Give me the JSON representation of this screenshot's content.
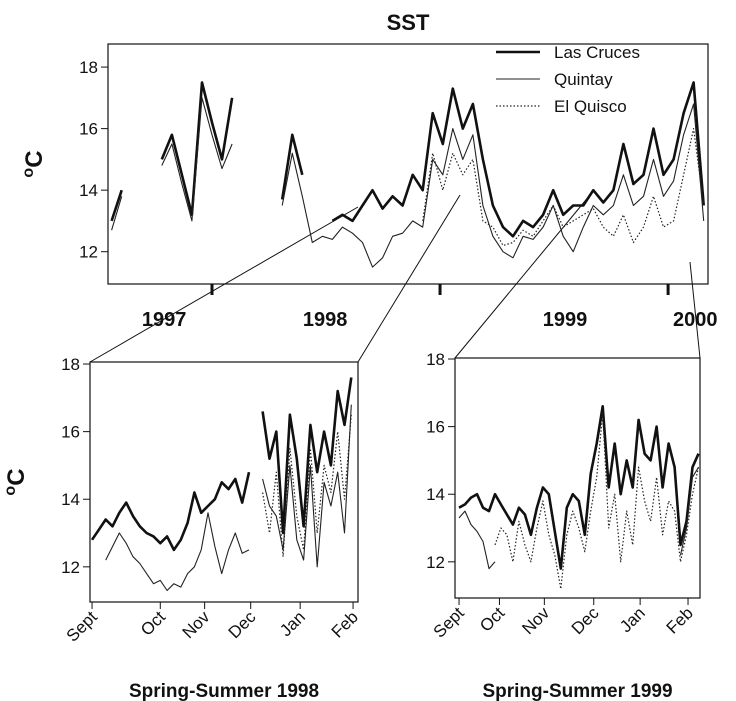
{
  "chart_data": [
    {
      "type": "line",
      "title": "SST",
      "ylabel": [
        "o",
        "C"
      ],
      "xlim": [
        1996.544,
        1999.175
      ],
      "xticks": [
        1997,
        1998,
        1999
      ],
      "year_labels": [
        {
          "value": 1996.79,
          "label": "1997"
        },
        {
          "value": 1997.496,
          "label": "1998"
        },
        {
          "value": 1998.548,
          "label": "1999"
        },
        {
          "value": 1999.119,
          "label": "2000"
        }
      ],
      "ylim": [
        10.95,
        18.75
      ],
      "yticks": [
        12,
        14,
        16,
        18
      ],
      "legend": "top-right",
      "x": [
        1996.56,
        1996.604,
        1996.648,
        1996.692,
        1996.736,
        1996.78,
        1996.824,
        1996.868,
        1996.912,
        1996.956,
        1997.0,
        1997.044,
        1997.088,
        1997.132,
        1997.176,
        1997.22,
        1997.264,
        1997.308,
        1997.352,
        1997.396,
        1997.44,
        1997.484,
        1997.528,
        1997.572,
        1997.616,
        1997.66,
        1997.704,
        1997.748,
        1997.792,
        1997.836,
        1997.88,
        1997.924,
        1997.968,
        1998.012,
        1998.056,
        1998.1,
        1998.144,
        1998.188,
        1998.232,
        1998.276,
        1998.32,
        1998.364,
        1998.408,
        1998.452,
        1998.496,
        1998.54,
        1998.584,
        1998.628,
        1998.672,
        1998.716,
        1998.76,
        1998.804,
        1998.848,
        1998.892,
        1998.936,
        1998.98,
        1999.024,
        1999.068,
        1999.112,
        1999.156
      ],
      "series": [
        {
          "name": "Las Cruces",
          "color": "#111111",
          "style": "thick",
          "values": [
            13.0,
            14.0,
            null,
            null,
            null,
            15.0,
            15.8,
            14.5,
            13.2,
            17.5,
            16.2,
            15.0,
            17.0,
            null,
            null,
            null,
            null,
            13.7,
            15.8,
            14.5,
            null,
            null,
            13.0,
            13.2,
            13.0,
            13.5,
            14.0,
            13.4,
            13.8,
            13.5,
            14.5,
            14.0,
            16.5,
            15.5,
            17.3,
            16.0,
            16.8,
            15.0,
            13.5,
            12.8,
            12.5,
            13.0,
            12.8,
            13.2,
            14.0,
            13.2,
            13.5,
            13.5,
            14.0,
            13.6,
            14.0,
            15.5,
            14.2,
            14.5,
            16.0,
            14.5,
            15.0,
            16.5,
            17.5,
            13.5
          ]
        },
        {
          "name": "Quintay",
          "color": "#222222",
          "style": "thin",
          "values": [
            12.7,
            13.8,
            null,
            null,
            null,
            14.8,
            15.5,
            14.2,
            13.0,
            17.0,
            15.8,
            14.7,
            15.5,
            null,
            null,
            null,
            null,
            13.5,
            15.2,
            13.8,
            12.3,
            12.5,
            12.4,
            12.8,
            12.6,
            12.3,
            11.5,
            11.8,
            12.5,
            12.6,
            13.0,
            12.8,
            15.0,
            14.5,
            16.0,
            15.0,
            15.8,
            13.5,
            12.5,
            12.0,
            11.8,
            12.5,
            12.4,
            12.8,
            13.5,
            12.5,
            12.0,
            12.8,
            13.5,
            13.2,
            13.5,
            14.5,
            13.5,
            13.8,
            15.0,
            13.8,
            14.3,
            15.8,
            16.8,
            13.0
          ]
        },
        {
          "name": "El Quisco",
          "color": "#222222",
          "style": "dotted",
          "values": [
            null,
            null,
            null,
            null,
            null,
            null,
            null,
            null,
            null,
            null,
            null,
            null,
            null,
            null,
            null,
            null,
            null,
            null,
            null,
            null,
            null,
            null,
            null,
            null,
            null,
            null,
            null,
            null,
            null,
            null,
            null,
            13.0,
            15.2,
            14.0,
            15.2,
            14.5,
            15.0,
            13.0,
            12.8,
            12.2,
            12.3,
            12.7,
            12.5,
            13.0,
            13.5,
            12.8,
            13.0,
            13.2,
            13.4,
            12.8,
            12.5,
            13.2,
            12.3,
            12.8,
            13.8,
            12.8,
            13.0,
            14.5,
            16.0,
            13.5
          ]
        }
      ]
    },
    {
      "type": "line",
      "title": "Spring-Summer 1998",
      "ylabel": [
        "o",
        "C"
      ],
      "xlim": [
        -1.2,
        155.9
      ],
      "xticks": [
        {
          "value": 0,
          "label": "Sept"
        },
        {
          "value": 40,
          "label": "Oct"
        },
        {
          "value": 66,
          "label": "Nov"
        },
        {
          "value": 93,
          "label": "Dec"
        },
        {
          "value": 122,
          "label": "Jan"
        },
        {
          "value": 153,
          "label": "Feb"
        }
      ],
      "ylim": [
        10.96,
        18.06
      ],
      "yticks": [
        12,
        14,
        16,
        18
      ],
      "x": [
        0,
        4,
        8,
        12,
        16,
        20,
        24,
        28,
        32,
        36,
        40,
        44,
        48,
        52,
        56,
        60,
        64,
        68,
        72,
        76,
        80,
        84,
        88,
        92,
        96,
        100,
        104,
        108,
        112,
        116,
        120,
        124,
        128,
        132,
        136,
        140,
        144,
        148,
        152
      ],
      "series": [
        {
          "name": "Las Cruces",
          "color": "#111111",
          "style": "thick",
          "values": [
            12.8,
            13.1,
            13.4,
            13.2,
            13.6,
            13.9,
            13.5,
            13.2,
            13.0,
            12.9,
            12.7,
            12.9,
            12.5,
            12.8,
            13.3,
            14.2,
            13.6,
            13.8,
            14.0,
            14.5,
            14.3,
            14.6,
            13.9,
            14.8,
            null,
            16.6,
            15.2,
            16.0,
            13.0,
            16.5,
            15.2,
            13.2,
            16.2,
            14.8,
            16.0,
            15.0,
            17.2,
            16.2,
            17.6
          ]
        },
        {
          "name": "Quintay",
          "color": "#222222",
          "style": "thin",
          "values": [
            null,
            null,
            12.2,
            12.6,
            13.0,
            12.7,
            12.3,
            12.1,
            11.8,
            11.5,
            11.6,
            11.3,
            11.5,
            11.4,
            11.8,
            12.0,
            12.5,
            13.6,
            12.6,
            11.8,
            12.5,
            13.0,
            12.4,
            12.5,
            null,
            14.6,
            13.8,
            13.5,
            12.5,
            15.0,
            12.8,
            12.2,
            15.0,
            12.0,
            14.5,
            13.8,
            14.8,
            13.0,
            16.8
          ]
        },
        {
          "name": "El Quisco",
          "color": "#222222",
          "style": "dotted",
          "values": [
            null,
            null,
            null,
            null,
            null,
            null,
            null,
            null,
            null,
            null,
            null,
            null,
            null,
            null,
            null,
            null,
            null,
            null,
            null,
            null,
            null,
            null,
            null,
            null,
            null,
            14.2,
            13.0,
            14.8,
            12.3,
            15.5,
            13.5,
            12.5,
            15.5,
            13.0,
            15.0,
            14.2,
            16.0,
            14.0,
            16.5
          ]
        }
      ]
    },
    {
      "type": "line",
      "title": "Spring-Summer 1999",
      "xlim": [
        -2.7,
        161
      ],
      "xticks": [
        {
          "value": 0,
          "label": "Sept"
        },
        {
          "value": 27,
          "label": "Oct"
        },
        {
          "value": 57,
          "label": "Nov"
        },
        {
          "value": 90,
          "label": "Dec"
        },
        {
          "value": 121,
          "label": "Jan"
        },
        {
          "value": 153,
          "label": "Feb"
        }
      ],
      "ylim": [
        10.93,
        18.03
      ],
      "yticks": [
        12,
        14,
        16,
        18
      ],
      "x": [
        0,
        4,
        8,
        12,
        16,
        20,
        24,
        28,
        32,
        36,
        40,
        44,
        48,
        52,
        56,
        60,
        64,
        68,
        72,
        76,
        80,
        84,
        88,
        92,
        96,
        100,
        104,
        108,
        112,
        116,
        120,
        124,
        128,
        132,
        136,
        140,
        144,
        148,
        152,
        156,
        160
      ],
      "series": [
        {
          "name": "Las Cruces",
          "color": "#111111",
          "style": "thick",
          "values": [
            13.6,
            13.7,
            13.9,
            14.0,
            13.6,
            13.5,
            14.0,
            13.7,
            13.4,
            13.1,
            13.6,
            13.4,
            12.8,
            13.6,
            14.2,
            14.0,
            12.9,
            11.8,
            13.6,
            14.0,
            13.8,
            12.8,
            14.6,
            15.5,
            16.6,
            14.2,
            15.5,
            14.0,
            15.0,
            14.2,
            16.2,
            15.2,
            15.0,
            16.0,
            14.2,
            15.5,
            14.8,
            12.5,
            13.2,
            14.8,
            15.2
          ]
        },
        {
          "name": "Quintay",
          "color": "#222222",
          "style": "thin",
          "values": [
            13.3,
            13.5,
            13.1,
            12.9,
            12.6,
            11.8,
            12.0,
            null,
            null,
            null,
            null,
            null,
            null,
            null,
            null,
            null,
            null,
            null,
            null,
            null,
            null,
            null,
            null,
            null,
            null,
            null,
            null,
            null,
            null,
            null,
            null,
            null,
            null,
            null,
            null,
            null,
            null,
            12.2,
            13.0,
            14.5,
            14.8
          ]
        },
        {
          "name": "El Quisco",
          "color": "#222222",
          "style": "dotted",
          "values": [
            null,
            null,
            null,
            null,
            null,
            null,
            12.5,
            13.0,
            12.8,
            12.0,
            13.2,
            12.5,
            12.0,
            13.0,
            13.8,
            12.8,
            12.2,
            11.2,
            12.8,
            13.5,
            13.0,
            12.3,
            13.5,
            14.5,
            16.4,
            13.0,
            14.0,
            12.0,
            13.5,
            12.5,
            14.8,
            13.8,
            13.2,
            14.5,
            12.8,
            13.8,
            13.5,
            12.0,
            12.8,
            14.0,
            14.8
          ]
        }
      ]
    }
  ]
}
